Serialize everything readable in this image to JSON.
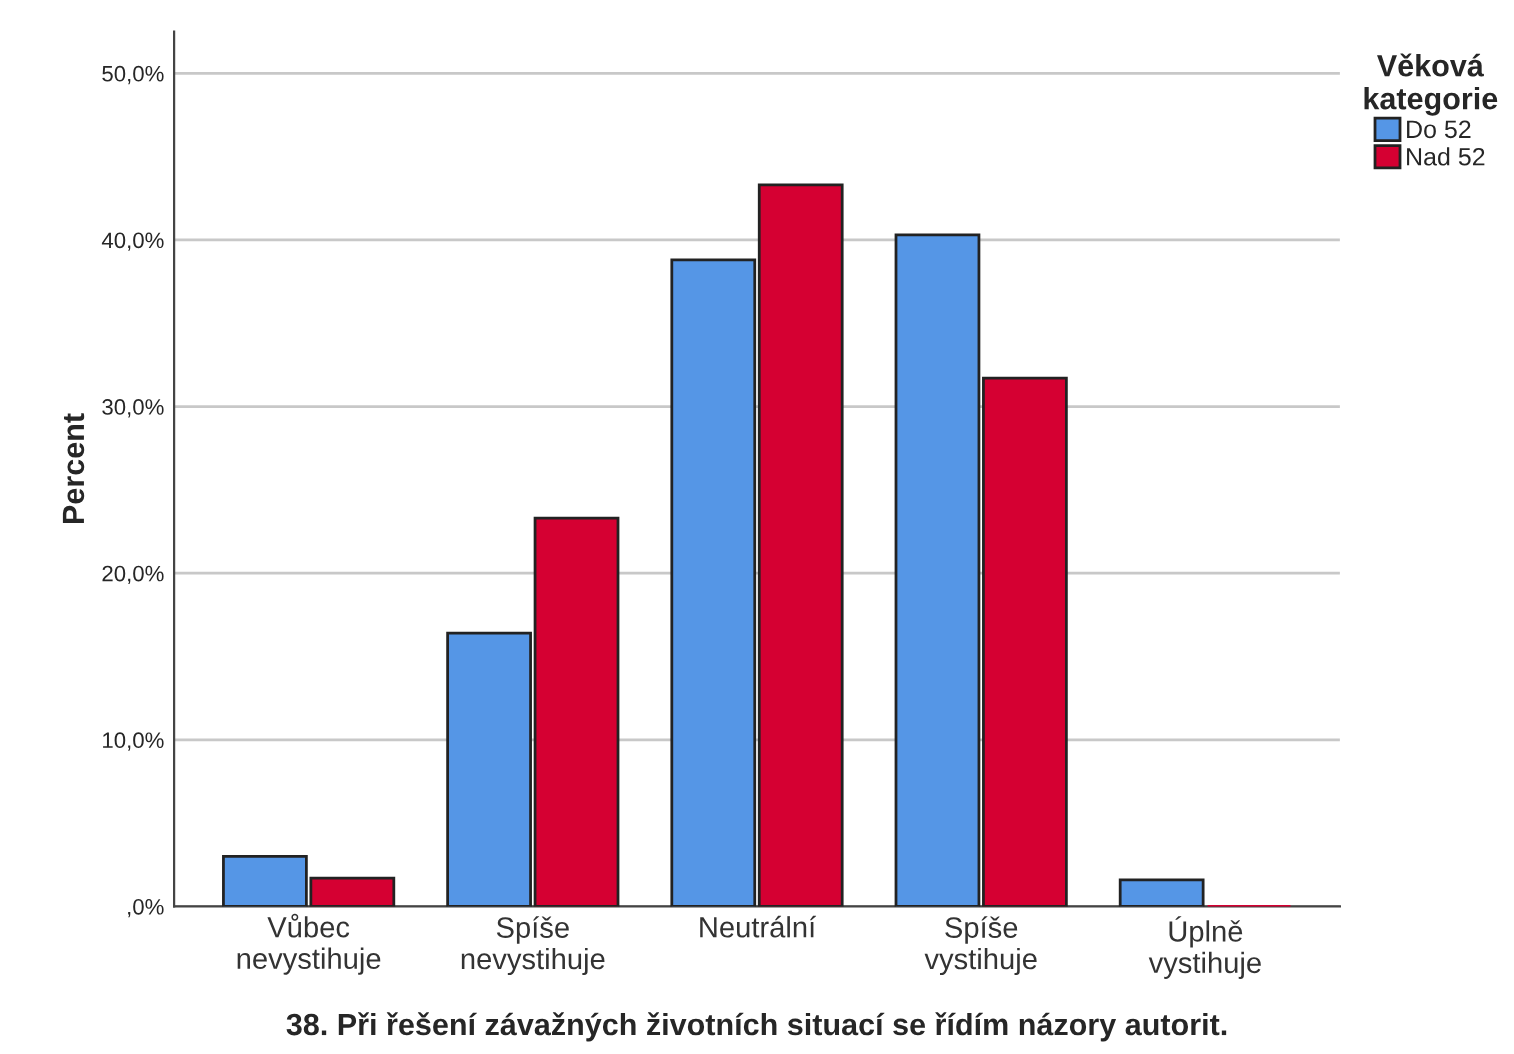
{
  "chart_data": {
    "type": "bar",
    "title": "38. Při řešení závažných životních situací se řídím názory autorit.",
    "ylabel": "Percent",
    "legend_title": "Věková\nkategorie",
    "categories": [
      "Vůbec\nnevystihuje",
      "Spíše\nnevystihuje",
      "Neutrální",
      "Spíše\nvystihuje",
      "Úplně\nvystihuje"
    ],
    "series": [
      {
        "name": "Do 52",
        "color": "#5596e6",
        "values": [
          3.0,
          16.4,
          38.8,
          40.3,
          1.6
        ]
      },
      {
        "name": "Nad 52",
        "color": "#d50032",
        "values": [
          1.7,
          23.3,
          43.3,
          31.7,
          0
        ]
      }
    ],
    "ylim": [
      0,
      52.5
    ],
    "yticks": [
      {
        "value": 0,
        "label": ",0%"
      },
      {
        "value": 10,
        "label": "10,0%"
      },
      {
        "value": 20,
        "label": "20,0%"
      },
      {
        "value": 30,
        "label": "30,0%"
      },
      {
        "value": 40,
        "label": "40,0%"
      },
      {
        "value": 50,
        "label": "50,0%"
      }
    ],
    "grid": "y",
    "legend": "top right"
  }
}
